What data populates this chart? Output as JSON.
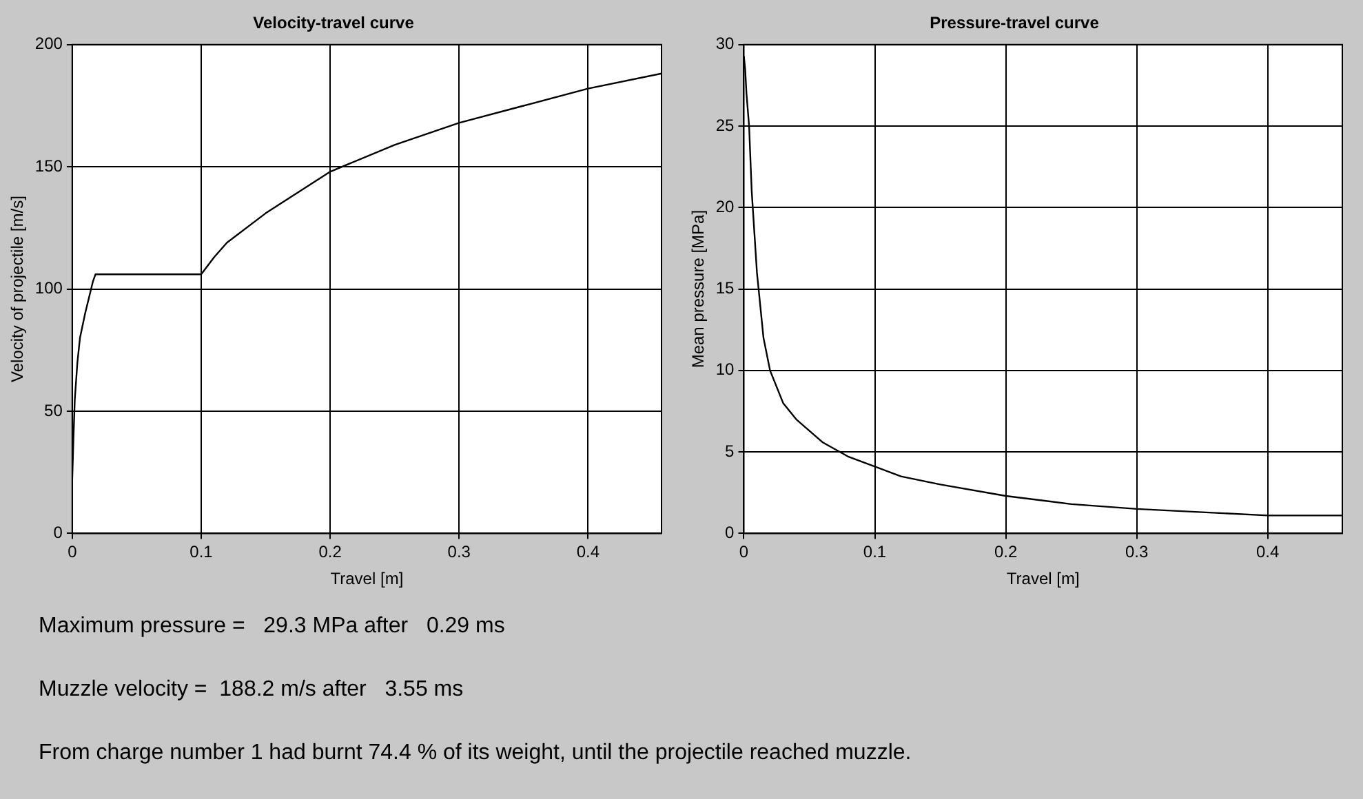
{
  "chart_data": [
    {
      "type": "line",
      "title": "Velocity-travel curve",
      "xlabel": "Travel [m]",
      "ylabel": "Velocity of projectile [m/s]",
      "xlim": [
        0,
        0.457
      ],
      "xticks": [
        0,
        0.1,
        0.2,
        0.3,
        0.4
      ],
      "ylim": [
        0,
        200
      ],
      "yticks": [
        0,
        50,
        100,
        150,
        200
      ],
      "grid": true,
      "legend": false,
      "series": [
        {
          "color": "#000000",
          "x": [
            0,
            0.001,
            0.002,
            0.004,
            0.006,
            0.01,
            0.016,
            0.018,
            0.1,
            0.11,
            0.12,
            0.15,
            0.2,
            0.25,
            0.3,
            0.35,
            0.4,
            0.457
          ],
          "values": [
            22,
            40,
            55,
            70,
            80,
            90,
            103,
            106,
            106,
            113,
            119,
            131,
            148,
            159,
            168,
            175,
            182,
            188.2
          ]
        }
      ]
    },
    {
      "type": "line",
      "title": "Pressure-travel curve",
      "xlabel": "Travel [m]",
      "ylabel": "Mean pressure [MPa]",
      "xlim": [
        0,
        0.457
      ],
      "xticks": [
        0,
        0.1,
        0.2,
        0.3,
        0.4
      ],
      "ylim": [
        0,
        30
      ],
      "yticks": [
        0,
        5,
        10,
        15,
        20,
        25,
        30
      ],
      "grid": true,
      "legend": false,
      "series": [
        {
          "color": "#000000",
          "x": [
            0,
            0.001,
            0.002,
            0.004,
            0.006,
            0.01,
            0.015,
            0.02,
            0.03,
            0.04,
            0.06,
            0.08,
            0.1,
            0.12,
            0.15,
            0.2,
            0.25,
            0.3,
            0.35,
            0.4,
            0.457
          ],
          "values": [
            29.3,
            28.5,
            27,
            25,
            21,
            16,
            12,
            10,
            8,
            7,
            5.6,
            4.7,
            4.1,
            3.5,
            3,
            2.3,
            1.8,
            1.5,
            1.3,
            1.1,
            1.1
          ]
        }
      ]
    },
    {
      "type": "other",
      "annotations": [
        "Maximum pressure =   29.3 MPa after   0.29 ms",
        "Muzzle velocity =  188.2 m/s after   3.55 ms",
        "From charge number 1 had burnt 74.4 % of its weight, until the projectile reached muzzle."
      ]
    }
  ]
}
